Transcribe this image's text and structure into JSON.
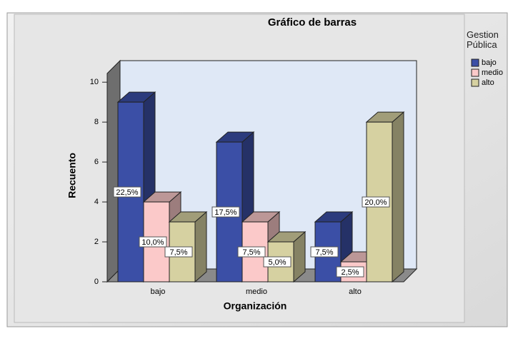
{
  "chart_data": {
    "type": "bar3d",
    "title": "Gráfico de barras",
    "x_label": "Organización",
    "y_label": "Recuento",
    "legend_title": "Gestion Pública",
    "categories": [
      "bajo",
      "medio",
      "alto"
    ],
    "series": [
      {
        "name": "bajo",
        "color": "#3b4fa6",
        "values": [
          9,
          7,
          3
        ],
        "value_labels": [
          "22,5%",
          "17,5%",
          "7,5%"
        ]
      },
      {
        "name": "medio",
        "color": "#fbc9c9",
        "values": [
          4,
          3,
          1
        ],
        "value_labels": [
          "10,0%",
          "7,5%",
          "2,5%"
        ]
      },
      {
        "name": "alto",
        "color": "#d6d1a1",
        "values": [
          3,
          2,
          8
        ],
        "value_labels": [
          "7,5%",
          "5,0%",
          "20,0%"
        ]
      }
    ],
    "ylim": [
      0,
      10.4
    ],
    "yticks": [
      0,
      2,
      4,
      6,
      8,
      10
    ],
    "grid": false,
    "legend": "right"
  }
}
